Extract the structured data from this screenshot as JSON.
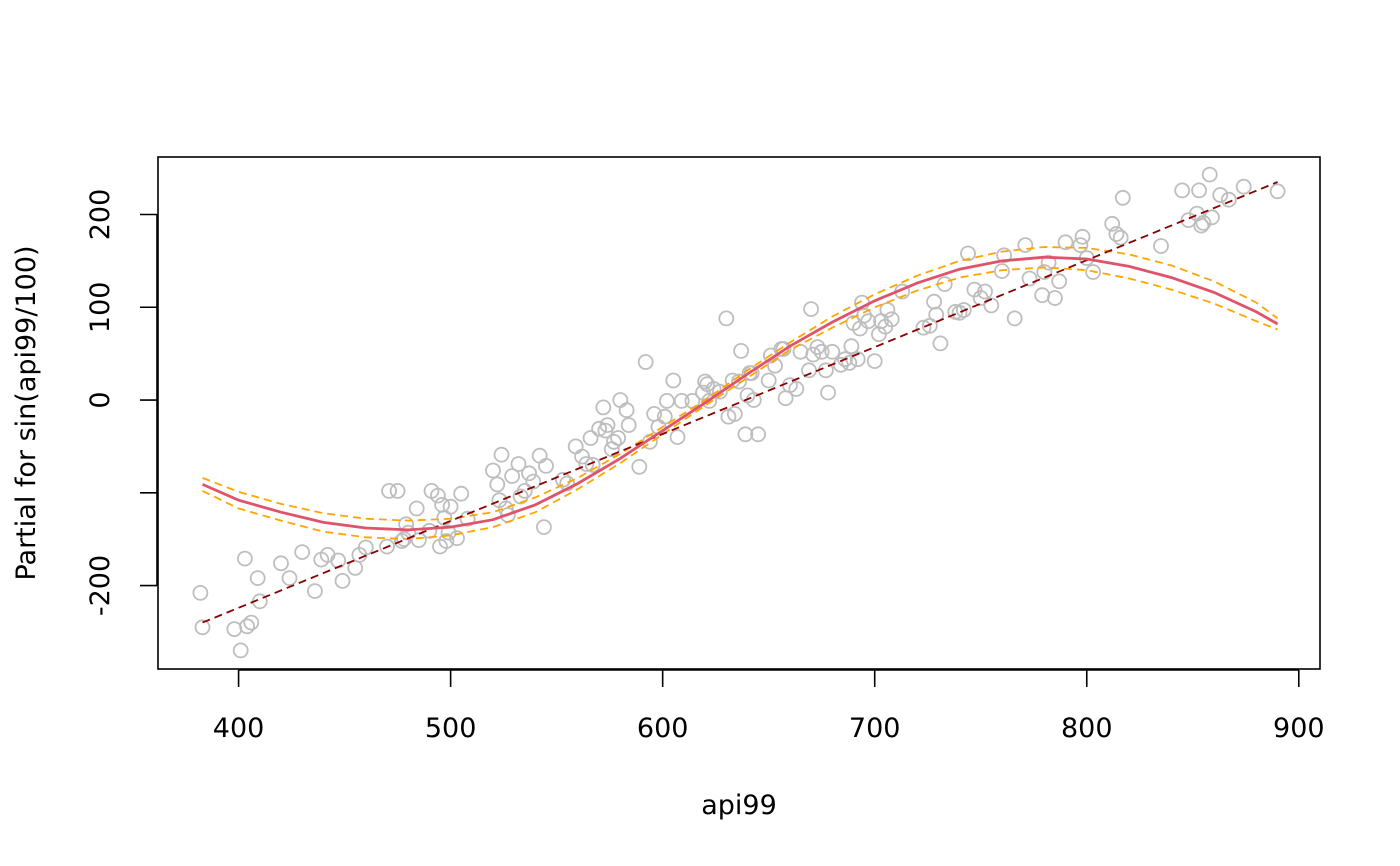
{
  "chart_data": {
    "type": "scatter",
    "title": "",
    "xlabel": "api99",
    "ylabel": "Partial for sin(api99/100)",
    "xlim": [
      362,
      910
    ],
    "ylim": [
      -290,
      262
    ],
    "x_ticks": [
      400,
      500,
      600,
      700,
      800,
      900
    ],
    "x_tick_labels": [
      "400",
      "500",
      "600",
      "700",
      "800",
      "900"
    ],
    "y_ticks": [
      -200,
      -100,
      0,
      100,
      200
    ],
    "y_tick_labels": [
      "-200",
      "",
      "0",
      "100",
      "200"
    ],
    "grid": false,
    "legend": "none",
    "colors": {
      "points": "#BEBEBE",
      "fit": "#DF536B",
      "band": "#FFA500",
      "linear": "#8B0000"
    },
    "partial_residuals": {
      "x": [
        382,
        383,
        398,
        401,
        403,
        404,
        406,
        409,
        410,
        420,
        424,
        430,
        436,
        439,
        442,
        447,
        449,
        455,
        457,
        460,
        470,
        471,
        475,
        477,
        478,
        479,
        480,
        484,
        485,
        490,
        491,
        494,
        495,
        496,
        497,
        498,
        499,
        500,
        503,
        505,
        508,
        520,
        522,
        523,
        524,
        526,
        527,
        529,
        532,
        533,
        535,
        537,
        539,
        542,
        544,
        545,
        553,
        555,
        559,
        562,
        564,
        566,
        567,
        570,
        572,
        573,
        574,
        576,
        577,
        579,
        580,
        583,
        584,
        589,
        592,
        594,
        596,
        598,
        601,
        602,
        605,
        607,
        609,
        614,
        619,
        620,
        621,
        622,
        624,
        627,
        630,
        631,
        633,
        634,
        636,
        637,
        639,
        640,
        641,
        642,
        643,
        645,
        650,
        651,
        653,
        656,
        657,
        658,
        660,
        663,
        665,
        669,
        670,
        671,
        673,
        675,
        677,
        678,
        680,
        684,
        686,
        688,
        689,
        690,
        692,
        693,
        694,
        695,
        697,
        700,
        702,
        703,
        705,
        706,
        708,
        713,
        723,
        726,
        728,
        729,
        731,
        733,
        738,
        740,
        742,
        744,
        747,
        750,
        752,
        755,
        760,
        761,
        766,
        771,
        773,
        779,
        780,
        782,
        785,
        787,
        790,
        797,
        798,
        800,
        803,
        812,
        814,
        816,
        817,
        835,
        845,
        848,
        852,
        853,
        854,
        855,
        858,
        859,
        863,
        867,
        874,
        890
      ],
      "y": [
        -208,
        -245,
        -247,
        -270,
        -171,
        -244,
        -240,
        -192,
        -217,
        -176,
        -192,
        -164,
        -206,
        -172,
        -167,
        -173,
        -195,
        -181,
        -167,
        -159,
        -158,
        -98,
        -98,
        -152,
        -150,
        -134,
        -143,
        -117,
        -151,
        -141,
        -98,
        -103,
        -158,
        -113,
        -127,
        -152,
        -143,
        -115,
        -149,
        -101,
        -128,
        -76,
        -91,
        -108,
        -59,
        -117,
        -124,
        -82,
        -69,
        -104,
        -98,
        -79,
        -88,
        -60,
        -137,
        -71,
        -86,
        -90,
        -50,
        -61,
        -69,
        -41,
        -70,
        -31,
        -8,
        -33,
        -27,
        -53,
        -45,
        -41,
        0,
        -11,
        -27,
        -72,
        41,
        -45,
        -15,
        -29,
        -18,
        -1,
        21,
        -40,
        -1,
        -1,
        8,
        20,
        17,
        -1,
        12,
        9,
        88,
        -18,
        21,
        -15,
        20,
        53,
        -37,
        5,
        29,
        29,
        0,
        -37,
        21,
        48,
        37,
        55,
        55,
        2,
        16,
        12,
        52,
        32,
        98,
        49,
        57,
        52,
        32,
        8,
        52,
        38,
        44,
        40,
        58,
        83,
        44,
        77,
        105,
        91,
        85,
        42,
        71,
        85,
        79,
        97,
        87,
        117,
        78,
        80,
        106,
        92,
        61,
        125,
        95,
        94,
        97,
        158,
        119,
        110,
        117,
        102,
        139,
        156,
        88,
        167,
        131,
        113,
        138,
        148,
        110,
        128,
        170,
        167,
        176,
        153,
        138,
        190,
        179,
        175,
        218,
        166,
        226,
        194,
        201,
        226,
        188,
        191,
        243,
        197,
        221,
        216,
        230,
        225
      ]
    },
    "series": [
      {
        "role": "fit",
        "x": [
          383,
          400,
          420,
          440,
          460,
          480,
          500,
          520,
          540,
          560,
          580,
          600,
          620,
          640,
          660,
          680,
          700,
          720,
          740,
          760,
          780,
          800,
          820,
          840,
          860,
          880,
          890
        ],
        "values": [
          -91,
          -108,
          -121,
          -132,
          -138,
          -140,
          -137,
          -129,
          -113,
          -90,
          -63,
          -33,
          -3,
          28,
          58,
          84,
          107,
          126,
          141,
          150,
          154,
          152,
          144,
          132,
          116,
          95,
          82
        ]
      },
      {
        "role": "upper-band",
        "x": [
          383,
          400,
          420,
          440,
          460,
          480,
          500,
          520,
          540,
          560,
          580,
          600,
          620,
          640,
          660,
          680,
          700,
          720,
          740,
          760,
          780,
          800,
          820,
          840,
          860,
          880,
          890
        ],
        "values": [
          -84,
          -99,
          -112,
          -122,
          -128,
          -130,
          -128,
          -121,
          -105,
          -84,
          -58,
          -29,
          0,
          32,
          62,
          90,
          114,
          134,
          150,
          160,
          165,
          164,
          157,
          145,
          128,
          105,
          88
        ]
      },
      {
        "role": "lower-band",
        "x": [
          383,
          400,
          420,
          440,
          460,
          480,
          500,
          520,
          540,
          560,
          580,
          600,
          620,
          640,
          660,
          680,
          700,
          720,
          740,
          760,
          780,
          800,
          820,
          840,
          860,
          880,
          890
        ],
        "values": [
          -98,
          -117,
          -130,
          -142,
          -148,
          -150,
          -146,
          -137,
          -121,
          -96,
          -68,
          -37,
          -6,
          24,
          54,
          78,
          100,
          118,
          132,
          140,
          143,
          140,
          131,
          119,
          104,
          85,
          76
        ]
      },
      {
        "role": "linear-term",
        "x": [
          383,
          890
        ],
        "values": [
          -240,
          235
        ]
      }
    ]
  }
}
